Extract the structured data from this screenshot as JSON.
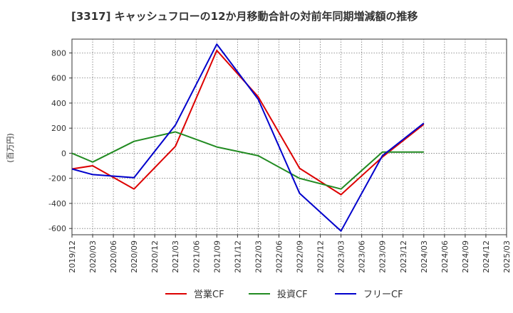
{
  "title": "[3317]  キャッシュフローの12か月移動合計の対前年同期増減額の推移",
  "y_unit_label": "(百万円)",
  "chart_data": {
    "type": "line",
    "title": "[3317]  キャッシュフローの12か月移動合計の対前年同期増減額の推移",
    "ylabel": "(百万円)",
    "xlabel": "",
    "ylim": [
      -650,
      910
    ],
    "yticks": [
      -600,
      -400,
      -200,
      0,
      200,
      400,
      600,
      800
    ],
    "ytick_labels": [
      "-600",
      "-400",
      "-200",
      "0",
      "200",
      "400",
      "600",
      "800"
    ],
    "x_ticks": [
      "2019/12",
      "2020/03",
      "2020/06",
      "2020/09",
      "2020/12",
      "2021/03",
      "2021/06",
      "2021/09",
      "2021/12",
      "2022/03",
      "2022/06",
      "2022/09",
      "2022/12",
      "2023/03",
      "2023/06",
      "2023/09",
      "2023/12",
      "2024/03",
      "2024/06",
      "2024/09",
      "2024/12",
      "2025/03"
    ],
    "grid": true,
    "legend_position": "bottom",
    "series": [
      {
        "name": "営業CF",
        "color": "#dd0000",
        "x": [
          "2019/12",
          "2020/03",
          "2020/09",
          "2021/03",
          "2021/09",
          "2022/03",
          "2022/09",
          "2023/03",
          "2023/09",
          "2024/03"
        ],
        "values": [
          -125,
          -100,
          -285,
          55,
          820,
          450,
          -120,
          -330,
          -30,
          230
        ]
      },
      {
        "name": "投資CF",
        "color": "#228b22",
        "x": [
          "2019/12",
          "2020/03",
          "2020/09",
          "2021/03",
          "2021/09",
          "2022/03",
          "2022/09",
          "2023/03",
          "2023/09",
          "2024/03"
        ],
        "values": [
          0,
          -70,
          95,
          170,
          50,
          -20,
          -200,
          -285,
          10,
          10
        ]
      },
      {
        "name": "フリーCF",
        "color": "#0000cc",
        "x": [
          "2019/12",
          "2020/03",
          "2020/09",
          "2021/03",
          "2021/09",
          "2022/03",
          "2022/09",
          "2023/03",
          "2023/09",
          "2024/03"
        ],
        "values": [
          -125,
          -170,
          -195,
          225,
          870,
          430,
          -320,
          -620,
          -20,
          240
        ]
      }
    ]
  }
}
